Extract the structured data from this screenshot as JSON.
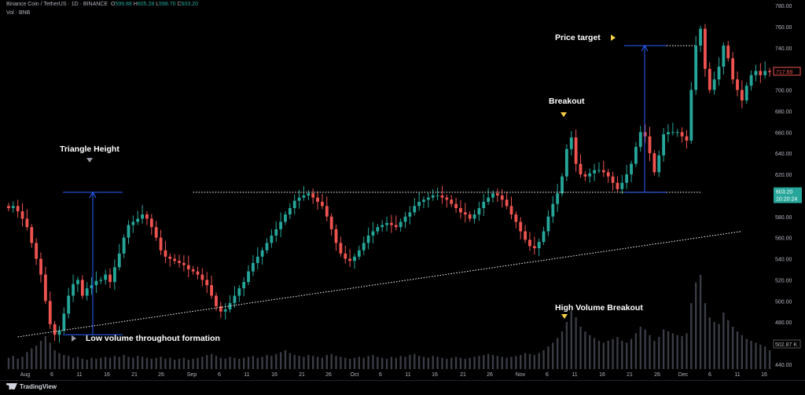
{
  "header": {
    "symbol": "Binance Coin / TetherUS · 1D · BINANCE",
    "ohlc": {
      "o_label": "O",
      "o": "599.88",
      "h_label": "H",
      "h": "605.28",
      "l_label": "L",
      "l": "598.70",
      "c_label": "C",
      "c": "603.20"
    },
    "vol_label": "Vol · BNB"
  },
  "annotations": {
    "triangle_height": "Triangle Height",
    "breakout": "Breakout",
    "price_target": "Price target",
    "high_volume_breakout": "High Volume Breakout",
    "low_volume": "Low volume throughout formation"
  },
  "price_tags": {
    "last": "717.69",
    "current": "603.20",
    "countdown": "10:20:24",
    "volume": "502.87 K"
  },
  "footer": {
    "brand": "TradingView"
  },
  "colors": {
    "up": "#26a69a",
    "down": "#ef5350",
    "background": "#000000",
    "annotation_line": "#2962ff",
    "marker": "#f7d046"
  },
  "chart_data": {
    "type": "candlestick",
    "title": "Binance Coin / TetherUS · 1D · BINANCE",
    "y_ticks": [
      780,
      760,
      740,
      720,
      700,
      680,
      660,
      640,
      620,
      600,
      580,
      560,
      540,
      520,
      500,
      480,
      460,
      440
    ],
    "x_ticks": [
      "Aug",
      "6",
      "11",
      "16",
      "21",
      "26",
      "Sep",
      "6",
      "11",
      "16",
      "21",
      "26",
      "Oct",
      "6",
      "11",
      "16",
      "21",
      "26",
      "Nov",
      "6",
      "11",
      "16",
      "21",
      "26",
      "Dec",
      "6",
      "11",
      "16"
    ],
    "ylim": [
      431,
      783
    ],
    "grid": false,
    "close": [
      588,
      590,
      585,
      578,
      570,
      555,
      540,
      525,
      500,
      478,
      468,
      472,
      488,
      505,
      516,
      520,
      505,
      512,
      515,
      519,
      520,
      525,
      518,
      532,
      545,
      560,
      572,
      575,
      578,
      582,
      578,
      570,
      560,
      548,
      542,
      540,
      538,
      536,
      534,
      530,
      528,
      525,
      520,
      515,
      505,
      495,
      490,
      492,
      498,
      505,
      512,
      518,
      528,
      536,
      542,
      548,
      555,
      562,
      568,
      575,
      582,
      588,
      595,
      598,
      600,
      602,
      598,
      594,
      590,
      580,
      568,
      555,
      545,
      540,
      538,
      542,
      548,
      555,
      562,
      566,
      570,
      572,
      574,
      572,
      570,
      575,
      580,
      584,
      590,
      594,
      596,
      598,
      600,
      600,
      598,
      596,
      592,
      588,
      584,
      582,
      578,
      582,
      588,
      594,
      598,
      602,
      600,
      596,
      590,
      582,
      575,
      566,
      558,
      552,
      550,
      556,
      566,
      580,
      592,
      602,
      618,
      644,
      655,
      630,
      620,
      618,
      621,
      624,
      624,
      622,
      618,
      612,
      606,
      612,
      620,
      630,
      646,
      660,
      656,
      640,
      622,
      638,
      658,
      660,
      660,
      660,
      656,
      652,
      700,
      742,
      758,
      720,
      700,
      710,
      722,
      742,
      730,
      710,
      700,
      690,
      704,
      714,
      718,
      714,
      718,
      717
    ],
    "volume_rel": [
      0.12,
      0.14,
      0.11,
      0.13,
      0.18,
      0.22,
      0.25,
      0.3,
      0.35,
      0.28,
      0.2,
      0.17,
      0.15,
      0.14,
      0.12,
      0.13,
      0.11,
      0.1,
      0.12,
      0.11,
      0.12,
      0.13,
      0.12,
      0.14,
      0.13,
      0.15,
      0.13,
      0.12,
      0.14,
      0.13,
      0.12,
      0.11,
      0.12,
      0.13,
      0.11,
      0.12,
      0.1,
      0.11,
      0.12,
      0.1,
      0.11,
      0.12,
      0.13,
      0.15,
      0.16,
      0.14,
      0.12,
      0.11,
      0.13,
      0.12,
      0.11,
      0.12,
      0.13,
      0.14,
      0.12,
      0.13,
      0.15,
      0.14,
      0.16,
      0.18,
      0.2,
      0.17,
      0.15,
      0.14,
      0.13,
      0.15,
      0.14,
      0.13,
      0.12,
      0.15,
      0.16,
      0.14,
      0.13,
      0.12,
      0.11,
      0.12,
      0.13,
      0.12,
      0.14,
      0.15,
      0.13,
      0.12,
      0.11,
      0.13,
      0.12,
      0.14,
      0.13,
      0.15,
      0.16,
      0.14,
      0.13,
      0.12,
      0.14,
      0.13,
      0.12,
      0.11,
      0.12,
      0.13,
      0.12,
      0.11,
      0.12,
      0.13,
      0.14,
      0.15,
      0.16,
      0.15,
      0.14,
      0.13,
      0.12,
      0.13,
      0.14,
      0.15,
      0.17,
      0.16,
      0.15,
      0.17,
      0.2,
      0.24,
      0.28,
      0.33,
      0.4,
      0.5,
      0.62,
      0.55,
      0.45,
      0.4,
      0.36,
      0.33,
      0.3,
      0.28,
      0.3,
      0.32,
      0.34,
      0.3,
      0.28,
      0.32,
      0.38,
      0.45,
      0.42,
      0.36,
      0.3,
      0.34,
      0.42,
      0.4,
      0.38,
      0.36,
      0.35,
      0.38,
      0.7,
      0.92,
      1.0,
      0.7,
      0.55,
      0.5,
      0.48,
      0.6,
      0.52,
      0.45,
      0.4,
      0.36,
      0.32,
      0.3,
      0.28,
      0.26,
      0.24,
      0.2
    ],
    "levels": {
      "resistance": 603,
      "triangle_low": 468,
      "target": 742,
      "trendline_start": [
        466,
        2
      ],
      "trendline_end": [
        566,
        159
      ]
    }
  }
}
